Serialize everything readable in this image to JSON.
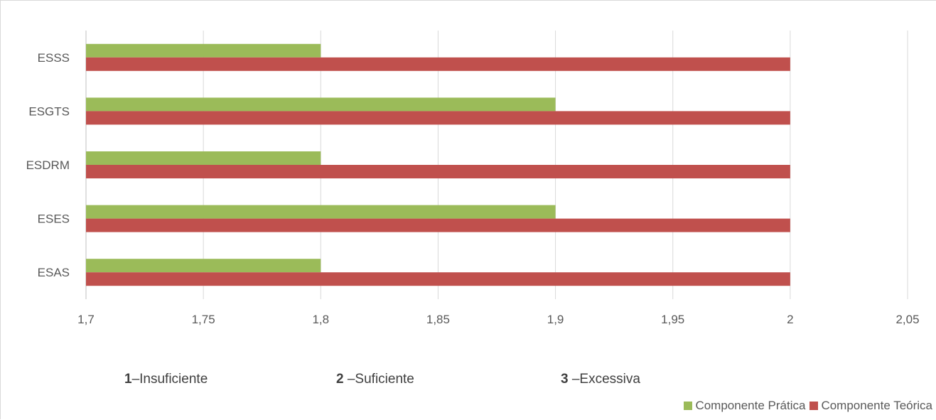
{
  "chart_data": {
    "type": "bar",
    "orientation": "horizontal",
    "categories": [
      "ESAS",
      "ESES",
      "ESDRM",
      "ESGTS",
      "ESSS"
    ],
    "series": [
      {
        "name": "Componente Prática",
        "color": "#9bbb59",
        "values": [
          1.8,
          1.9,
          1.8,
          1.9,
          1.8
        ]
      },
      {
        "name": "Componente Teórica",
        "color": "#c0504d",
        "values": [
          2,
          2,
          2,
          2,
          2
        ]
      }
    ],
    "xlim": [
      1.7,
      2.05
    ],
    "xticks": [
      "1,7",
      "1,75",
      "1,8",
      "1,85",
      "1,9",
      "1,95",
      "2",
      "2,05"
    ],
    "xtick_values": [
      1.7,
      1.75,
      1.8,
      1.85,
      1.9,
      1.95,
      2.0,
      2.05
    ],
    "grid": true,
    "legend_position": "bottom-right",
    "title": "",
    "xlabel": "",
    "ylabel": ""
  },
  "scale_notes": [
    {
      "num": "1",
      "text": "–Insuficiente"
    },
    {
      "num": "2",
      "text": "–Suficiente"
    },
    {
      "num": "3",
      "text": "–Excessiva"
    }
  ]
}
